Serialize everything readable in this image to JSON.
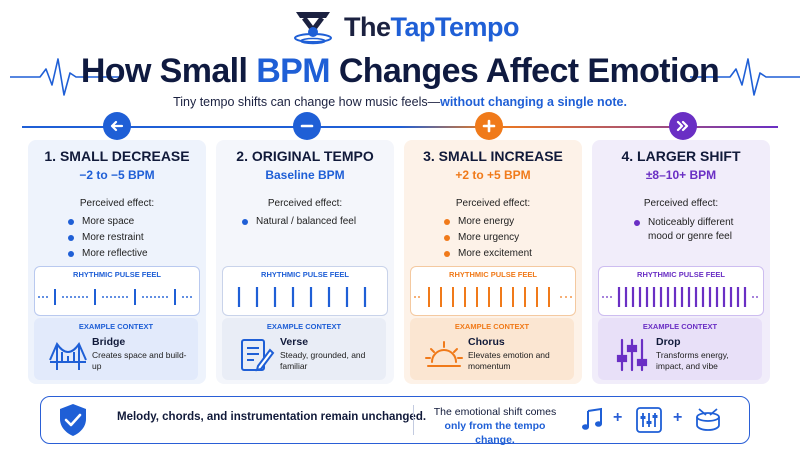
{
  "brand": {
    "name_part1": "The",
    "name_part2": "TapTempo"
  },
  "title": {
    "part1": "How Small ",
    "accent": "BPM",
    "part2": " Changes Affect Emotion"
  },
  "subtitle": {
    "part1": "Tiny tempo shifts can change how music feels—",
    "accent": "without changing a single note."
  },
  "cards": [
    {
      "title": "1. SMALL DECREASE",
      "range": "−2 to −5 BPM",
      "effect_label": "Perceived effect:",
      "effects": [
        "More space",
        "More restraint",
        "More reflective"
      ],
      "pulse_label": "RHYTHMIC PULSE FEEL",
      "context_label": "EXAMPLE CONTEXT",
      "context_name": "Bridge",
      "context_desc": "Creates space and build-up",
      "color": "#1f5fd6",
      "icon": "arrow-left-icon"
    },
    {
      "title": "2. ORIGINAL TEMPO",
      "range": "Baseline BPM",
      "effect_label": "Perceived effect:",
      "effects": [
        "Natural / balanced feel"
      ],
      "pulse_label": "RHYTHMIC PULSE FEEL",
      "context_label": "EXAMPLE CONTEXT",
      "context_name": "Verse",
      "context_desc": "Steady, grounded, and familiar",
      "color": "#1f5fd6",
      "icon": "minus-icon"
    },
    {
      "title": "3. SMALL INCREASE",
      "range": "+2 to +5 BPM",
      "effect_label": "Perceived effect:",
      "effects": [
        "More energy",
        "More urgency",
        "More excitement"
      ],
      "pulse_label": "RHYTHMIC PULSE FEEL",
      "context_label": "EXAMPLE CONTEXT",
      "context_name": "Chorus",
      "context_desc": "Elevates emotion and momentum",
      "color": "#f07a1a",
      "icon": "plus-icon"
    },
    {
      "title": "4. LARGER SHIFT",
      "range": "±8–10+ BPM",
      "effect_label": "Perceived effect:",
      "effects": [
        "Noticeably different mood or genre feel"
      ],
      "pulse_label": "RHYTHMIC PULSE FEEL",
      "context_label": "EXAMPLE CONTEXT",
      "context_name": "Drop",
      "context_desc": "Transforms energy, impact, and vibe",
      "color": "#6a2fc4",
      "icon": "fast-forward-icon"
    }
  ],
  "bottom": {
    "main_text": "Melody, chords, and instrumentation remain unchanged.",
    "secondary_part1": "The emotional shift comes",
    "secondary_accent": "only from the tempo change.",
    "plus1": "+",
    "plus2": "+",
    "icons": [
      "shield-check-icon",
      "music-note-icon",
      "mixer-icon",
      "drum-icon"
    ]
  }
}
